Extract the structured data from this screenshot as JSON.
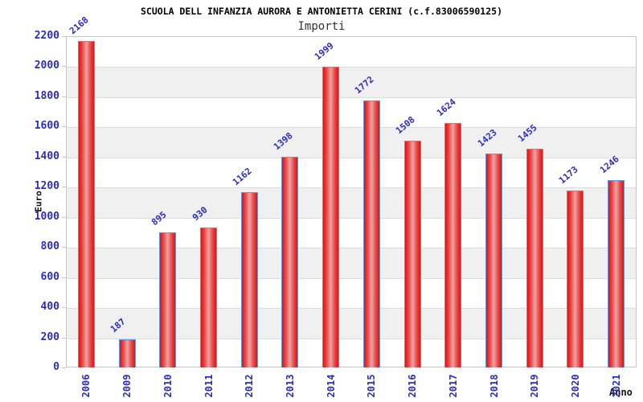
{
  "chart_data": {
    "type": "bar",
    "title": "SCUOLA DELL INFANZIA AURORA E ANTONIETTA CERINI (c.f.83006590125)",
    "subtitle": "Importi",
    "xlabel": "Anno",
    "ylabel": "Euro",
    "categories": [
      "2006",
      "2009",
      "2010",
      "2011",
      "2012",
      "2013",
      "2014",
      "2015",
      "2016",
      "2017",
      "2018",
      "2019",
      "2020",
      "2021"
    ],
    "values": [
      2168,
      187,
      895,
      930,
      1162,
      1398,
      1999,
      1772,
      1508,
      1624,
      1423,
      1455,
      1173,
      1246
    ],
    "ylim": [
      0,
      2200
    ],
    "ytick_step": 200,
    "yticks": [
      0,
      200,
      400,
      600,
      800,
      1000,
      1200,
      1400,
      1600,
      1800,
      2000,
      2200
    ],
    "grid": true,
    "legend": "none",
    "colors": {
      "tick_text": "#2b2bcc",
      "value_text": "#2b2bcc",
      "bar_border": "#5b9be0",
      "bar_edge": "#e31212",
      "bar_mid": "#e74444",
      "bar_center": "#eda4a4",
      "band": "#f0f0f0",
      "gridline": "#dcdcdc",
      "frame": "#c6c6c6",
      "title_text": "#000000",
      "subtitle_text": "#333333"
    }
  }
}
